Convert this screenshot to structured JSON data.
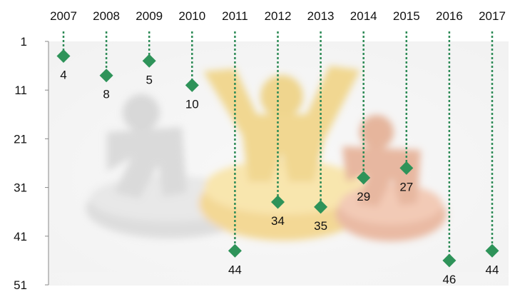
{
  "chart_data": {
    "type": "scatter",
    "title": "",
    "xlabel": "",
    "ylabel": "",
    "x_position": "top",
    "y_inverted": true,
    "ylim": [
      1,
      51
    ],
    "yticks": [
      1,
      11,
      21,
      31,
      41,
      51
    ],
    "categories": [
      "2007",
      "2008",
      "2009",
      "2010",
      "2011",
      "2012",
      "2013",
      "2014",
      "2015",
      "2016",
      "2017"
    ],
    "series": [
      {
        "values": [
          4,
          8,
          5,
          10,
          44,
          34,
          35,
          29,
          27,
          46,
          44
        ]
      }
    ],
    "marker": "diamond",
    "leader_lines": "dotted from top axis to each point",
    "background": "faded photo of three figures on a podium (grey, gold, orange)",
    "colors": {
      "marker": "#2e9359",
      "leader": "#2e8b57",
      "podium_grey": "#c9c9c9",
      "podium_gold": "#f1cf63",
      "podium_orange": "#e6a07c"
    }
  }
}
